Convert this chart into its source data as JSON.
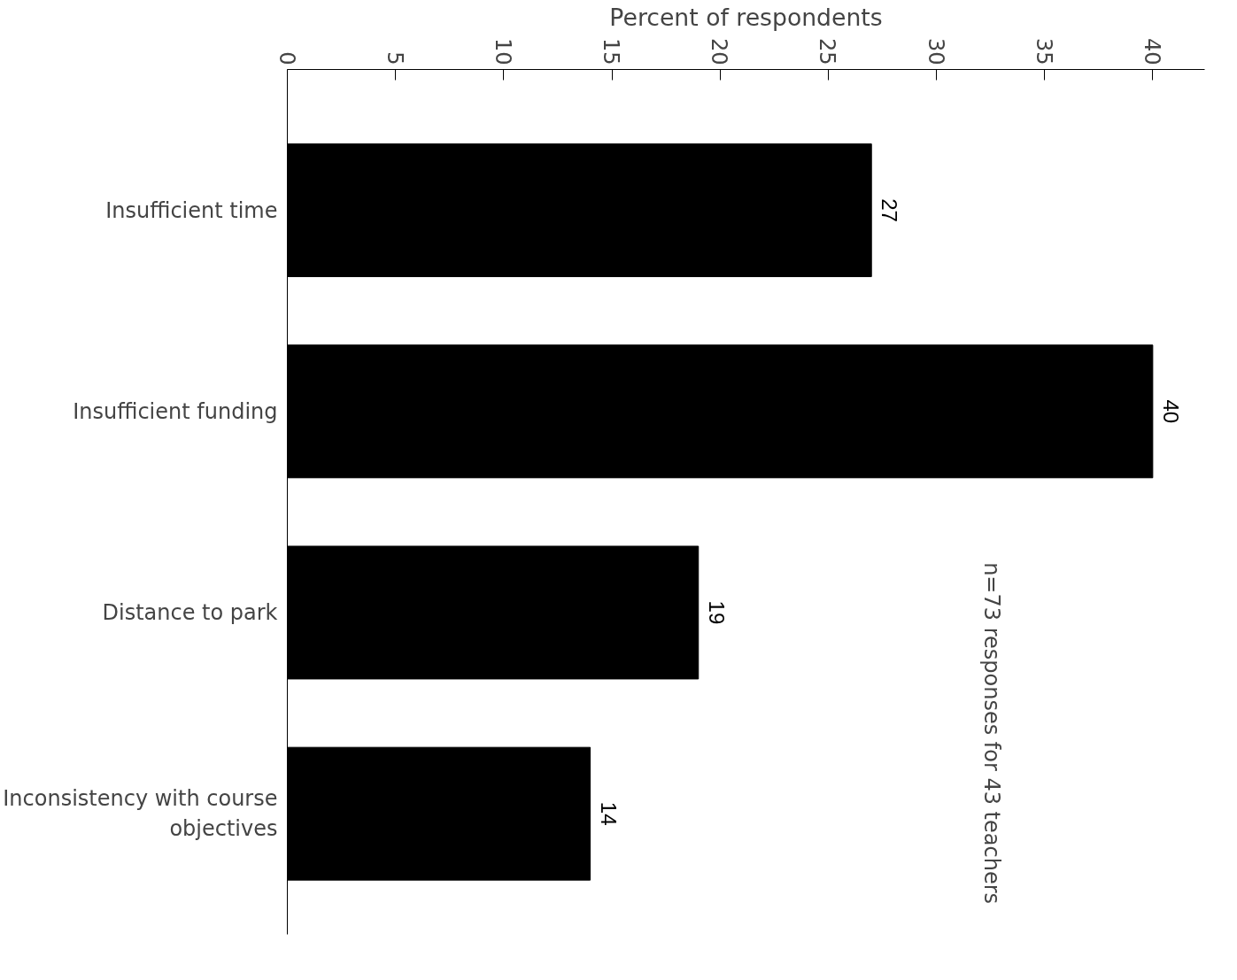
{
  "chart_data": {
    "type": "bar",
    "orientation": "horizontal",
    "xlabel": "Percent of respondents",
    "categories": [
      "Insufficient time",
      "Insufficient funding",
      "Distance to park",
      "Inconsistency with course\nobjectives"
    ],
    "values": [
      27,
      40,
      19,
      14
    ],
    "color": "#000000",
    "xlim": [
      0,
      40
    ],
    "xticks": [
      0,
      5,
      10,
      15,
      20,
      25,
      30,
      35,
      40
    ],
    "data_labels": true,
    "grid": false,
    "annotations": [
      "n=73 responses for 43 teachers"
    ]
  }
}
